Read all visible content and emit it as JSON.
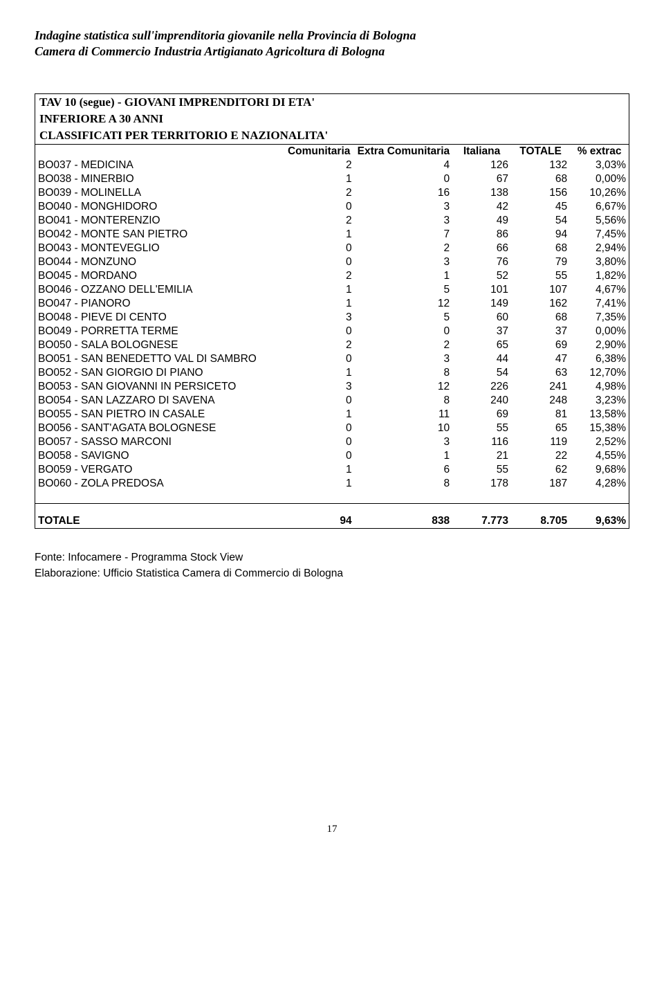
{
  "header": {
    "line1": "Indagine statistica sull'imprenditoria giovanile nella Provincia di Bologna",
    "line2": "Camera di Commercio Industria Artigianato Agricoltura di Bologna"
  },
  "title": {
    "line1": "TAV 10 (segue) - GIOVANI IMPRENDITORI DI ETA'",
    "line2": "INFERIORE A 30 ANNI",
    "line3": "CLASSIFICATI PER TERRITORIO E NAZIONALITA'"
  },
  "table": {
    "columns": [
      "",
      "Comunitaria",
      "Extra Comunitaria",
      "Italiana",
      "TOTALE",
      "% extrac"
    ],
    "rows": [
      [
        "BO037 - MEDICINA",
        "2",
        "4",
        "126",
        "132",
        "3,03%"
      ],
      [
        "BO038 - MINERBIO",
        "1",
        "0",
        "67",
        "68",
        "0,00%"
      ],
      [
        "BO039 - MOLINELLA",
        "2",
        "16",
        "138",
        "156",
        "10,26%"
      ],
      [
        "BO040 - MONGHIDORO",
        "0",
        "3",
        "42",
        "45",
        "6,67%"
      ],
      [
        "BO041 - MONTERENZIO",
        "2",
        "3",
        "49",
        "54",
        "5,56%"
      ],
      [
        "BO042 - MONTE SAN PIETRO",
        "1",
        "7",
        "86",
        "94",
        "7,45%"
      ],
      [
        "BO043 - MONTEVEGLIO",
        "0",
        "2",
        "66",
        "68",
        "2,94%"
      ],
      [
        "BO044 - MONZUNO",
        "0",
        "3",
        "76",
        "79",
        "3,80%"
      ],
      [
        "BO045 - MORDANO",
        "2",
        "1",
        "52",
        "55",
        "1,82%"
      ],
      [
        "BO046 - OZZANO DELL'EMILIA",
        "1",
        "5",
        "101",
        "107",
        "4,67%"
      ],
      [
        "BO047 - PIANORO",
        "1",
        "12",
        "149",
        "162",
        "7,41%"
      ],
      [
        "BO048 - PIEVE DI CENTO",
        "3",
        "5",
        "60",
        "68",
        "7,35%"
      ],
      [
        "BO049 - PORRETTA TERME",
        "0",
        "0",
        "37",
        "37",
        "0,00%"
      ],
      [
        "BO050 - SALA BOLOGNESE",
        "2",
        "2",
        "65",
        "69",
        "2,90%"
      ],
      [
        "BO051 - SAN BENEDETTO VAL DI SAMBRO",
        "0",
        "3",
        "44",
        "47",
        "6,38%"
      ],
      [
        "BO052 - SAN GIORGIO DI PIANO",
        "1",
        "8",
        "54",
        "63",
        "12,70%"
      ],
      [
        "BO053 - SAN GIOVANNI IN PERSICETO",
        "3",
        "12",
        "226",
        "241",
        "4,98%"
      ],
      [
        "BO054 - SAN LAZZARO DI SAVENA",
        "0",
        "8",
        "240",
        "248",
        "3,23%"
      ],
      [
        "BO055 - SAN PIETRO IN CASALE",
        "1",
        "11",
        "69",
        "81",
        "13,58%"
      ],
      [
        "BO056 - SANT'AGATA BOLOGNESE",
        "0",
        "10",
        "55",
        "65",
        "15,38%"
      ],
      [
        "BO057 - SASSO MARCONI",
        "0",
        "3",
        "116",
        "119",
        "2,52%"
      ],
      [
        "BO058 - SAVIGNO",
        "0",
        "1",
        "21",
        "22",
        "4,55%"
      ],
      [
        "BO059 - VERGATO",
        "1",
        "6",
        "55",
        "62",
        "9,68%"
      ],
      [
        "BO060 - ZOLA PREDOSA",
        "1",
        "8",
        "178",
        "187",
        "4,28%"
      ]
    ],
    "total": [
      "TOTALE",
      "94",
      "838",
      "7.773",
      "8.705",
      "9,63%"
    ]
  },
  "footer": {
    "line1": "Fonte: Infocamere - Programma Stock View",
    "line2": "Elaborazione: Ufficio Statistica Camera di Commercio di Bologna"
  },
  "page": "17"
}
